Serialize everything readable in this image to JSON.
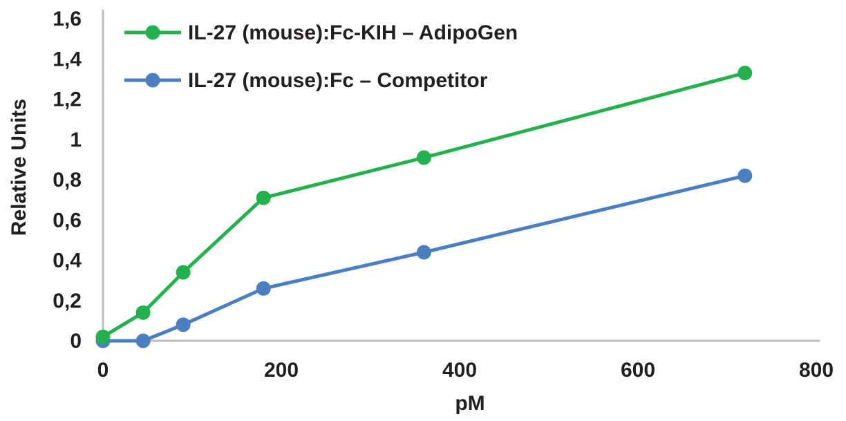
{
  "chart_data": {
    "type": "line",
    "title": "",
    "xlabel": "pM",
    "ylabel": "Relative Units",
    "xlim": [
      0,
      800
    ],
    "ylim": [
      0,
      1.6
    ],
    "x_ticks": [
      "0",
      "200",
      "400",
      "600",
      "800"
    ],
    "y_ticks": [
      "0",
      "0,2",
      "0,4",
      "0,6",
      "0,8",
      "1",
      "1,2",
      "1,4",
      "1,6"
    ],
    "grid": false,
    "legend_position": "top-left",
    "series": [
      {
        "name": "IL-27 (mouse):Fc-KIH – AdipoGen",
        "color": "#22b14c",
        "x": [
          0,
          45,
          90,
          180,
          360,
          720
        ],
        "y": [
          0.02,
          0.14,
          0.34,
          0.71,
          0.91,
          1.33
        ]
      },
      {
        "name": "IL-27 (mouse):Fc – Competitor",
        "color": "#4a7fc1",
        "x": [
          0,
          45,
          90,
          180,
          360,
          720
        ],
        "y": [
          0.0,
          0.0,
          0.08,
          0.26,
          0.44,
          0.82
        ]
      }
    ]
  }
}
